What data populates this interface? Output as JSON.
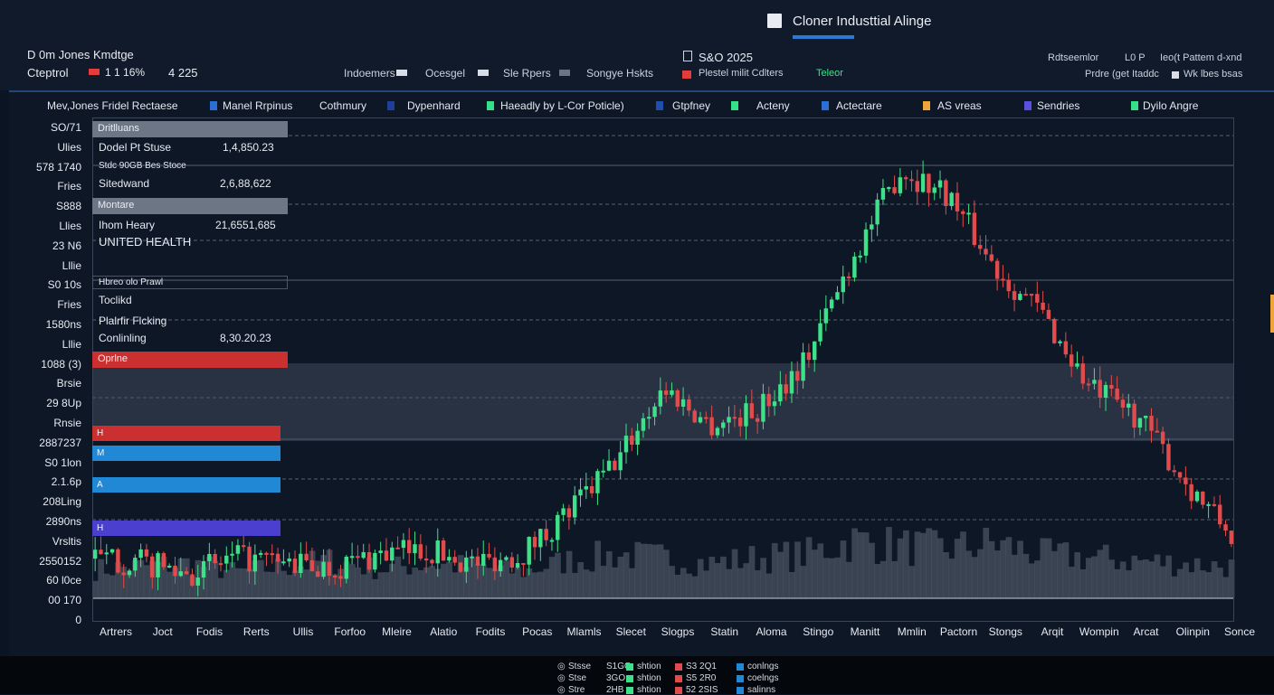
{
  "window": {
    "title": "Cloner Industtial Alinge"
  },
  "header": {
    "market_name": "D 0m Jones Kmdtge",
    "market_sub": "Cteptrol",
    "change_value": "1 1 16%",
    "price_value": "4 225",
    "tabs": [
      "Indoemers",
      "Ocesgel",
      "Sle Rpers",
      "Songye Hskts"
    ],
    "index_label": "S&O 2025",
    "sub_label": "Plestel milit Cdlters",
    "extra_label": "Teleor",
    "right_top": [
      "Rdtseemlor",
      "L0 P",
      "Ieo(t Pattem d-xnd"
    ],
    "right_bottom": [
      "Prdre (get Itaddc",
      "Wk lbes bsas"
    ]
  },
  "legend": [
    {
      "label": "Mev,Jones Fridel Rectaese",
      "color": ""
    },
    {
      "label": "Manel Rrpinus",
      "color": "#2a6fd6"
    },
    {
      "label": "Cothmury",
      "color": ""
    },
    {
      "label": "Dypenhard",
      "color": "#1f3f9a"
    },
    {
      "label": "Haeadly by L-Cor  Poticle)",
      "color": "#35e08a"
    },
    {
      "label": "Gtpfney",
      "color": "#1f4fae"
    },
    {
      "label": "Acteny",
      "color": "#35e08a"
    },
    {
      "label": "Actectare",
      "color": "#2a6fd6"
    },
    {
      "label": "AS vreas",
      "color": "#f0a53b"
    },
    {
      "label": "Sendries",
      "color": "#5a4fe0"
    },
    {
      "label": "Dyilo Angre",
      "color": "#35e08a"
    }
  ],
  "y_labels": [
    "SO/71",
    "Ulies",
    "578 1740",
    "Fries",
    "S888",
    "Llies",
    "23 N6",
    "Lllie",
    "S0 10s",
    "Fries",
    "1580ns",
    "Lllie",
    "1088 (3)",
    "Brsie",
    "29 8Up",
    "Rnsie",
    "2887237",
    "S0 1lon",
    "2.1.6p",
    "208Ling",
    "2890ns",
    "Vrsltis",
    "2550152",
    "60 l0ce",
    "00 170",
    "0"
  ],
  "x_labels": [
    "Artrers",
    "Joct",
    "Fodis",
    "Rerts",
    "Ullis",
    "Forfoo",
    "Mleire",
    "Alatio",
    "Fodits",
    "Pocas",
    "Mlamls",
    "Slecet",
    "Slogps",
    "Statin",
    "Aloma",
    "Stingo",
    "Manitt",
    "Mmlin",
    "Pactorn",
    "Stongs",
    "Arqit",
    "Wompin",
    "Arcat",
    "Olinpin",
    "Sonce"
  ],
  "panel": {
    "section1_title": "Dritlluans",
    "rows1": [
      {
        "label": "Dodel Pt Stuse",
        "value": "1,4,850.23"
      },
      {
        "label": "Stdc 90GB Bes Stoce",
        "value": ""
      },
      {
        "label": "Sitedwand",
        "value": "2,6,88,622"
      }
    ],
    "section2_title": "Montare",
    "rows2": [
      {
        "label": "Ihom Heary",
        "value": "21,6551,685"
      },
      {
        "label": "UNITED HEALTH",
        "value": ""
      }
    ],
    "section3_title": "Hbreo olo Prawl",
    "rows3": [
      {
        "label": "Toclikd",
        "value": ""
      },
      {
        "label": "Plalrfir Flcking",
        "value": ""
      },
      {
        "label": "Conlinling",
        "value": "8,30.20.23"
      }
    ],
    "alert_label": "Oprlne",
    "bars": [
      {
        "label": "H",
        "color": "#c9302f",
        "percent": 100
      },
      {
        "label": "M",
        "color": "#2188d6",
        "percent": 100
      },
      {
        "label": "A",
        "color": "#2188d6",
        "percent": 100
      },
      {
        "label": "H",
        "color": "#4a3fcf",
        "percent": 100
      }
    ]
  },
  "colors": {
    "up": "#3fe08a",
    "down": "#e24b4b",
    "frame": "#3a4658",
    "accent": "#2a7ad5"
  },
  "footer": {
    "rows": [
      {
        "a": "Stsse",
        "b": "S1GO",
        "c": "shtion",
        "d": "S3 2Q1",
        "e": "conlngs"
      },
      {
        "a": "Stse",
        "b": "3GO",
        "c": "shtion",
        "d": "S5 2R0",
        "e": "coelngs"
      },
      {
        "a": "Stre",
        "b": "2HB",
        "c": "shtion",
        "d": "52 2SIS",
        "e": "salinns"
      }
    ]
  },
  "chart_data": {
    "type": "candlestick",
    "title": "",
    "xlabel": "",
    "ylabel": "",
    "x": [
      "Artrers",
      "Joct",
      "Fodis",
      "Rerts",
      "Ullis",
      "Forfoo",
      "Mleire",
      "Alatio",
      "Fodits",
      "Pocas",
      "Mlamls",
      "Slecet",
      "Slogps",
      "Statin",
      "Aloma",
      "Stingo",
      "Manitt",
      "Mmlin",
      "Pactorn",
      "Stongs",
      "Arqit",
      "Wompin",
      "Arcat",
      "Olinpin",
      "Sonce"
    ],
    "ylim": [
      0,
      100
    ],
    "close_trend": [
      7,
      6,
      4,
      7,
      6,
      5,
      8,
      9,
      6,
      8,
      17,
      28,
      44,
      36,
      39,
      50,
      72,
      91,
      86,
      70,
      60,
      44,
      38,
      24,
      12
    ],
    "volume_trend": [
      20,
      22,
      24,
      18,
      22,
      26,
      20,
      24,
      22,
      18,
      26,
      30,
      28,
      24,
      28,
      30,
      40,
      36,
      34,
      38,
      30,
      28,
      26,
      24,
      22
    ],
    "grid": true,
    "legend_position": "top"
  }
}
